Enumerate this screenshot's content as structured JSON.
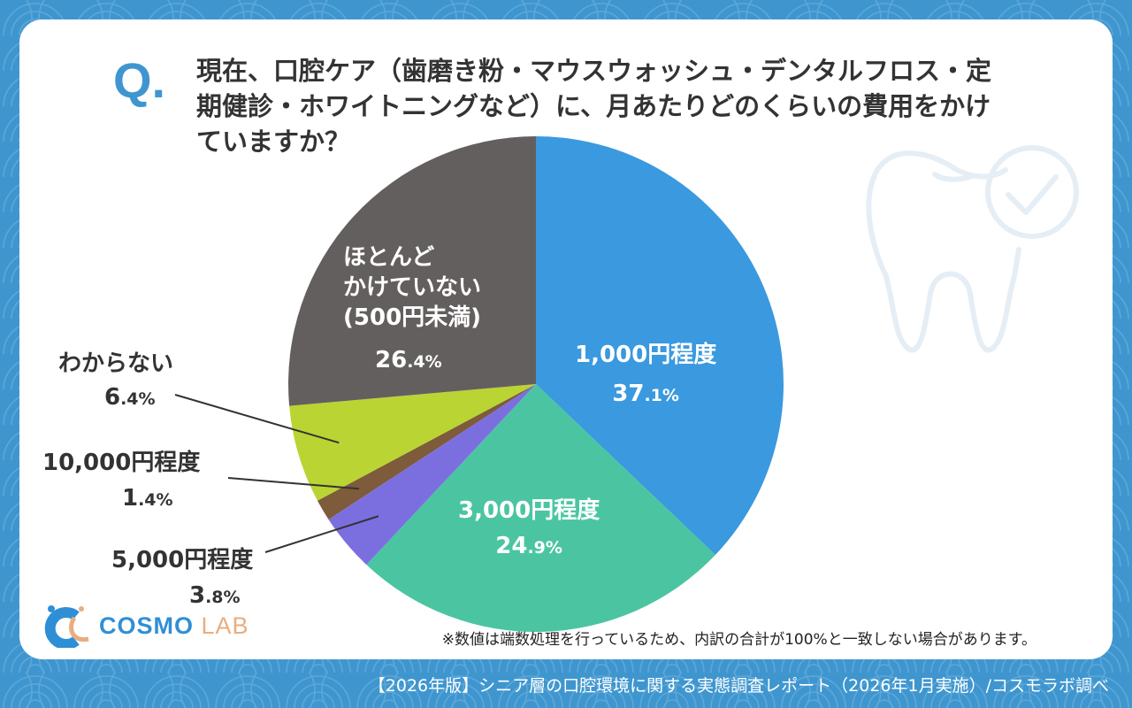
{
  "question_mark": "Q.",
  "title_lines": [
    "現在、口腔ケア（歯磨き粉・マウスウォッシュ・デンタルフロス・定",
    "期健診・ホワイトニングなど）に、月あたりどのくらいの費用をかけ",
    "ていますか？"
  ],
  "note": "※数値は端数処理を行っているため、内訳の合計が100%と一致しない場合があります。",
  "logo": {
    "main": "COSMO",
    "sub": "LAB"
  },
  "footer": "【2026年版】シニア層の口腔環境に関する実態調査レポート（2026年1月実施）/コスモラボ調べ",
  "chart_data": {
    "type": "pie",
    "title": "現在、口腔ケア（歯磨き粉・マウスウォッシュ・デンタルフロス・定期健診・ホワイトニングなど）に、月あたりどのくらいの費用をかけていますか？",
    "start": "top",
    "direction": "clockwise",
    "slices": [
      {
        "label": "1,000円程度",
        "value": 37.1,
        "int": "37",
        "dec": ".1%",
        "color": "#3a99df"
      },
      {
        "label": "3,000円程度",
        "value": 24.9,
        "int": "24",
        "dec": ".9%",
        "color": "#4bc5a1"
      },
      {
        "label": "5,000円程度",
        "value": 3.8,
        "int": "3",
        "dec": ".8%",
        "color": "#7b6fe0"
      },
      {
        "label": "10,000円程度",
        "value": 1.4,
        "int": "1",
        "dec": ".4%",
        "color": "#7d5b3b"
      },
      {
        "label": "わからない",
        "value": 6.4,
        "int": "6",
        "dec": ".4%",
        "color": "#bad433"
      },
      {
        "label_lines": [
          "ほとんど",
          "かけていない",
          "(500円未満)"
        ],
        "label": "ほとんどかけていない(500円未満)",
        "value": 26.4,
        "int": "26",
        "dec": ".4%",
        "color": "#645f5f"
      }
    ]
  }
}
